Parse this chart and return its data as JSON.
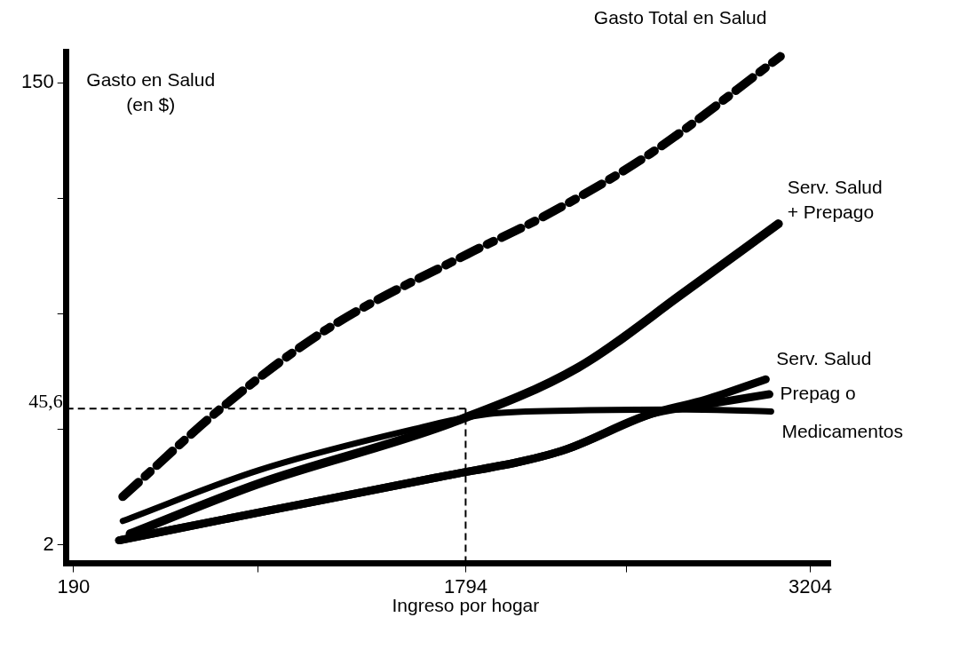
{
  "chart_data": {
    "type": "line",
    "ylabel": "Gasto en Salud\n(en $)",
    "xlabel": "Ingreso por hogar",
    "xlim": [
      160,
      3286
    ],
    "ylim": [
      -4,
      160
    ],
    "xticks": [
      190,
      {
        "value": 943.5,
        "label": null
      },
      1794,
      {
        "value": 2450.5,
        "label": null
      },
      3204
    ],
    "yticks": [
      2,
      {
        "value": 39,
        "label": null
      },
      {
        "value": 76,
        "label": null
      },
      {
        "value": 113,
        "label": null
      },
      150
    ],
    "grid": false,
    "legend": false,
    "marker": "none",
    "ref_lines": [
      {
        "axis": "y",
        "value": 45.6,
        "label": "45,6",
        "line_style": "dashed",
        "color": "#000000"
      },
      {
        "axis": "x",
        "value": 1794,
        "line_style": "dashed",
        "color": "#000000"
      }
    ],
    "series": [
      {
        "name": "Gasto Total en Salud",
        "color": "#000000",
        "line_style": "dashed",
        "x": [
          391,
          804,
          1232,
          1801,
          2110,
          2550,
          3082
        ],
        "values": [
          17.4,
          46.4,
          71.3,
          95.1,
          107,
          127.3,
          158.4
        ]
      },
      {
        "name": "Serv. Salud\n+ Prepago",
        "color": "#000000",
        "line_style": "solid",
        "x": [
          421,
          945,
          1742,
          2255,
          2698,
          3074
        ],
        "values": [
          5.5,
          21.5,
          41.2,
          58.8,
          83.4,
          104.8
        ]
      },
      {
        "name": "Serv. Salud",
        "color": "#000000",
        "line_style": "solid",
        "x": [
          376,
          945,
          1668,
          2185,
          2553,
          2777,
          3022
        ],
        "values": [
          3.4,
          12.3,
          23.4,
          32,
          43.9,
          48.5,
          55
        ]
      },
      {
        "name": "Prepag o",
        "color": "#000000",
        "line_style": "solid",
        "x": [
          376,
          945,
          1668,
          2185,
          2553,
          2777,
          3037
        ],
        "values": [
          3.4,
          12.3,
          23.4,
          32,
          43.9,
          46.9,
          50.2
        ]
      },
      {
        "name": "Medicamentos",
        "color": "#000000",
        "line_style": "solid",
        "x": [
          391,
          945,
          1586,
          1887,
          2255,
          2698,
          3044
        ],
        "values": [
          9.6,
          25.8,
          39.1,
          43.9,
          45,
          45.3,
          44.7
        ]
      }
    ]
  }
}
